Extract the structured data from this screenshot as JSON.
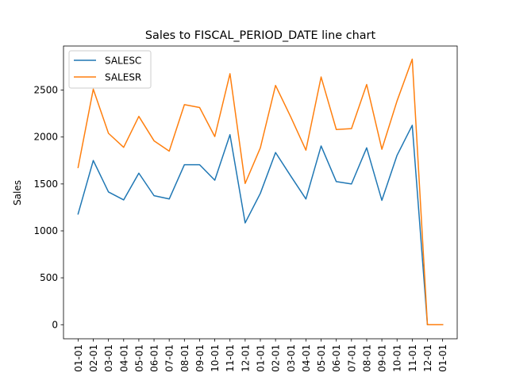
{
  "chart_data": {
    "type": "line",
    "title": "Sales to FISCAL_PERIOD_DATE line chart",
    "xlabel": "",
    "ylabel": "Sales",
    "categories": [
      "01-01",
      "02-01",
      "03-01",
      "04-01",
      "05-01",
      "06-01",
      "07-01",
      "08-01",
      "09-01",
      "10-01",
      "11-01",
      "12-01",
      "01-01",
      "02-01",
      "03-01",
      "04-01",
      "05-01",
      "06-01",
      "07-01",
      "08-01",
      "09-01",
      "10-01",
      "11-01",
      "12-01",
      "01-01"
    ],
    "ylim": [
      -150,
      2970
    ],
    "yticks": [
      0,
      500,
      1000,
      1500,
      2000,
      2500
    ],
    "grid": false,
    "legend_position": "upper-left",
    "series": [
      {
        "name": "SALESC",
        "color": "#1f77b4",
        "values": [
          1180,
          1750,
          1415,
          1330,
          1615,
          1375,
          1340,
          1705,
          1705,
          1540,
          2025,
          1085,
          1400,
          1835,
          1585,
          1340,
          1905,
          1525,
          1500,
          1885,
          1325,
          1805,
          2125,
          0,
          0
        ]
      },
      {
        "name": "SALESR",
        "color": "#ff7f0e",
        "values": [
          1675,
          2510,
          2040,
          1890,
          2220,
          1960,
          1850,
          2345,
          2315,
          2005,
          2675,
          1505,
          1885,
          2550,
          2215,
          1860,
          2640,
          2080,
          2090,
          2560,
          1870,
          2385,
          2830,
          0,
          0
        ]
      }
    ]
  }
}
